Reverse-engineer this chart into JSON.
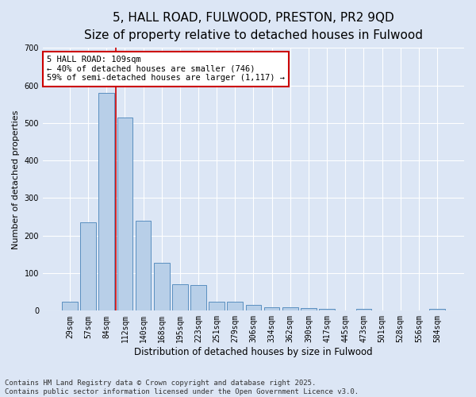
{
  "title": "5, HALL ROAD, FULWOOD, PRESTON, PR2 9QD",
  "subtitle": "Size of property relative to detached houses in Fulwood",
  "xlabel": "Distribution of detached houses by size in Fulwood",
  "ylabel": "Number of detached properties",
  "categories": [
    "29sqm",
    "57sqm",
    "84sqm",
    "112sqm",
    "140sqm",
    "168sqm",
    "195sqm",
    "223sqm",
    "251sqm",
    "279sqm",
    "306sqm",
    "334sqm",
    "362sqm",
    "390sqm",
    "417sqm",
    "445sqm",
    "473sqm",
    "501sqm",
    "528sqm",
    "556sqm",
    "584sqm"
  ],
  "values": [
    25,
    235,
    580,
    515,
    240,
    128,
    70,
    68,
    25,
    25,
    15,
    10,
    10,
    8,
    5,
    0,
    5,
    0,
    0,
    0,
    5
  ],
  "bar_color": "#b8cfe8",
  "bar_edge_color": "#5a8fc0",
  "vline_x": 2.5,
  "vline_color": "#cc0000",
  "annotation_text": "5 HALL ROAD: 109sqm\n← 40% of detached houses are smaller (746)\n59% of semi-detached houses are larger (1,117) →",
  "annotation_box_color": "#ffffff",
  "annotation_box_edge_color": "#cc0000",
  "ylim": [
    0,
    700
  ],
  "yticks": [
    0,
    100,
    200,
    300,
    400,
    500,
    600,
    700
  ],
  "fig_background_color": "#dce6f5",
  "plot_background_color": "#dce6f5",
  "footer": "Contains HM Land Registry data © Crown copyright and database right 2025.\nContains public sector information licensed under the Open Government Licence v3.0.",
  "title_fontsize": 11,
  "subtitle_fontsize": 9.5,
  "xlabel_fontsize": 8.5,
  "ylabel_fontsize": 8,
  "tick_fontsize": 7,
  "footer_fontsize": 6.5,
  "annotation_fontsize": 7.5
}
